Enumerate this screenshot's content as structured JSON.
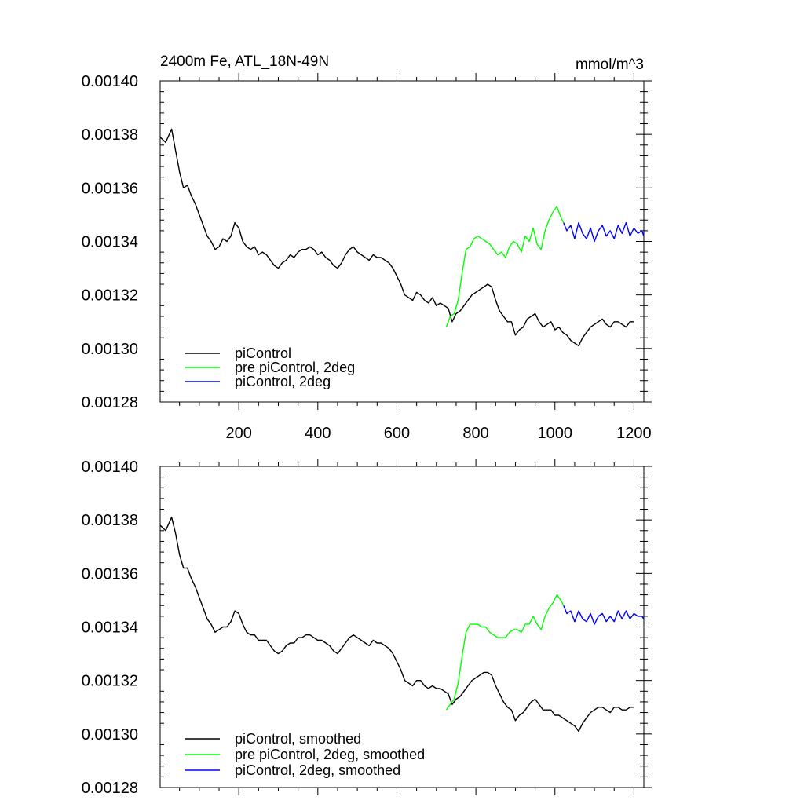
{
  "chart_data": [
    {
      "type": "line",
      "title": "2400m Fe, ATL_18N-49N",
      "units": "mmol/m^3",
      "xlim": [
        1,
        1225
      ],
      "ylim": [
        0.00128,
        0.0014
      ],
      "xticks": [
        200,
        400,
        600,
        800,
        1000,
        1200
      ],
      "xtick_labels": [
        "200",
        "400",
        "600",
        "800",
        "1000",
        "1200"
      ],
      "yticks": [
        0.00128,
        0.0013,
        0.00132,
        0.00134,
        0.00136,
        0.00138,
        0.0014
      ],
      "ytick_labels": [
        "0.00128",
        "0.00130",
        "0.00132",
        "0.00134",
        "0.00136",
        "0.00138",
        "0.00140"
      ],
      "legend_position": "bottom-left",
      "grid": false,
      "series": [
        {
          "name": "piControl",
          "color": "#000000",
          "x": [
            1,
            15,
            30,
            40,
            50,
            60,
            70,
            80,
            90,
            100,
            110,
            120,
            130,
            140,
            150,
            160,
            170,
            180,
            190,
            200,
            210,
            220,
            230,
            240,
            250,
            260,
            270,
            280,
            290,
            300,
            310,
            320,
            330,
            340,
            350,
            360,
            370,
            380,
            390,
            400,
            410,
            420,
            430,
            440,
            450,
            460,
            470,
            480,
            490,
            500,
            510,
            520,
            530,
            540,
            550,
            560,
            570,
            580,
            590,
            600,
            610,
            620,
            630,
            640,
            650,
            660,
            670,
            680,
            690,
            700,
            710,
            720,
            730,
            740,
            750,
            760,
            770,
            780,
            790,
            800,
            810,
            820,
            830,
            840,
            850,
            860,
            870,
            880,
            890,
            900,
            910,
            920,
            930,
            940,
            950,
            960,
            970,
            980,
            990,
            1000,
            1010,
            1020,
            1030,
            1040,
            1050,
            1060,
            1070,
            1080,
            1090,
            1100,
            1110,
            1120,
            1130,
            1140,
            1150,
            1160,
            1170,
            1180,
            1190,
            1200
          ],
          "y": [
            0.001379,
            0.001377,
            0.001382,
            0.001374,
            0.001366,
            0.00136,
            0.001361,
            0.001357,
            0.001354,
            0.00135,
            0.001346,
            0.001342,
            0.00134,
            0.001337,
            0.001338,
            0.001341,
            0.00134,
            0.001342,
            0.001347,
            0.001345,
            0.00134,
            0.001338,
            0.001337,
            0.001338,
            0.001335,
            0.001336,
            0.001335,
            0.001333,
            0.001331,
            0.00133,
            0.001332,
            0.001333,
            0.001335,
            0.001334,
            0.001336,
            0.001337,
            0.001337,
            0.001338,
            0.001337,
            0.001335,
            0.001336,
            0.001334,
            0.001333,
            0.001331,
            0.00133,
            0.001332,
            0.001335,
            0.001337,
            0.001338,
            0.001336,
            0.001335,
            0.001334,
            0.001333,
            0.001335,
            0.001334,
            0.001334,
            0.001333,
            0.001332,
            0.00133,
            0.001327,
            0.001324,
            0.00132,
            0.001319,
            0.001318,
            0.001321,
            0.00132,
            0.001318,
            0.001317,
            0.001319,
            0.001316,
            0.001317,
            0.001316,
            0.001315,
            0.00131,
            0.001313,
            0.001314,
            0.001316,
            0.001318,
            0.00132,
            0.001321,
            0.001322,
            0.001323,
            0.001324,
            0.001323,
            0.001318,
            0.001314,
            0.001312,
            0.00131,
            0.00131,
            0.001305,
            0.001307,
            0.001308,
            0.001311,
            0.001312,
            0.001313,
            0.00131,
            0.001308,
            0.001309,
            0.00131,
            0.001307,
            0.001308,
            0.001306,
            0.001305,
            0.001303,
            0.001302,
            0.001301,
            0.001304,
            0.001306,
            0.001308,
            0.001309,
            0.00131,
            0.001311,
            0.001309,
            0.001308,
            0.00131,
            0.00131,
            0.001309,
            0.001308,
            0.00131,
            0.00131
          ]
        },
        {
          "name": "pre piControl, 2deg",
          "color": "#00ff00",
          "x": [
            725,
            735,
            745,
            755,
            765,
            775,
            785,
            795,
            805,
            815,
            825,
            835,
            845,
            855,
            865,
            875,
            885,
            895,
            905,
            915,
            925,
            935,
            945,
            955,
            965,
            975,
            985,
            995,
            1005,
            1015,
            1022
          ],
          "y": [
            0.001308,
            0.001312,
            0.001313,
            0.001318,
            0.001328,
            0.001337,
            0.001338,
            0.001341,
            0.001342,
            0.001341,
            0.00134,
            0.001339,
            0.001337,
            0.001335,
            0.001336,
            0.001334,
            0.001338,
            0.00134,
            0.001339,
            0.001336,
            0.001342,
            0.00134,
            0.001345,
            0.001339,
            0.001337,
            0.001344,
            0.001348,
            0.001351,
            0.001353,
            0.001349,
            0.001347
          ]
        },
        {
          "name": "piControl, 2deg",
          "color": "#0000ff",
          "x": [
            1022,
            1030,
            1040,
            1050,
            1060,
            1070,
            1080,
            1090,
            1100,
            1110,
            1120,
            1130,
            1140,
            1150,
            1160,
            1170,
            1180,
            1190,
            1200,
            1210,
            1220,
            1225
          ],
          "y": [
            0.001347,
            0.001344,
            0.001346,
            0.001341,
            0.001347,
            0.001343,
            0.001341,
            0.001345,
            0.00134,
            0.001344,
            0.001346,
            0.001342,
            0.001344,
            0.001341,
            0.001346,
            0.001343,
            0.001347,
            0.001342,
            0.001345,
            0.001343,
            0.001344,
            0.001342
          ]
        }
      ]
    },
    {
      "type": "line",
      "xlim": [
        1,
        1225
      ],
      "ylim": [
        0.00128,
        0.0014
      ],
      "xticks": [
        200,
        400,
        600,
        800,
        1000,
        1200
      ],
      "yticks": [
        0.00128,
        0.0013,
        0.00132,
        0.00134,
        0.00136,
        0.00138,
        0.0014
      ],
      "ytick_labels": [
        "0.00128",
        "0.00130",
        "0.00132",
        "0.00134",
        "0.00136",
        "0.00138",
        "0.00140"
      ],
      "legend_position": "bottom-left",
      "grid": false,
      "series": [
        {
          "name": "piControl, smoothed",
          "color": "#000000",
          "x": [
            1,
            15,
            30,
            40,
            50,
            60,
            70,
            80,
            90,
            100,
            110,
            120,
            130,
            140,
            150,
            160,
            170,
            180,
            190,
            200,
            210,
            220,
            230,
            240,
            250,
            260,
            270,
            280,
            290,
            300,
            310,
            320,
            330,
            340,
            350,
            360,
            370,
            380,
            390,
            400,
            410,
            420,
            430,
            440,
            450,
            460,
            470,
            480,
            490,
            500,
            510,
            520,
            530,
            540,
            550,
            560,
            570,
            580,
            590,
            600,
            610,
            620,
            630,
            640,
            650,
            660,
            670,
            680,
            690,
            700,
            710,
            720,
            730,
            740,
            750,
            760,
            770,
            780,
            790,
            800,
            810,
            820,
            830,
            840,
            850,
            860,
            870,
            880,
            890,
            900,
            910,
            920,
            930,
            940,
            950,
            960,
            970,
            980,
            990,
            1000,
            1010,
            1020,
            1030,
            1040,
            1050,
            1060,
            1070,
            1080,
            1090,
            1100,
            1110,
            1120,
            1130,
            1140,
            1150,
            1160,
            1170,
            1180,
            1190,
            1200
          ],
          "y": [
            0.001378,
            0.001376,
            0.001381,
            0.001375,
            0.001367,
            0.001362,
            0.001362,
            0.001358,
            0.001355,
            0.001351,
            0.001347,
            0.001343,
            0.001341,
            0.001338,
            0.001339,
            0.00134,
            0.00134,
            0.001342,
            0.001346,
            0.001345,
            0.001341,
            0.001338,
            0.001337,
            0.001337,
            0.001335,
            0.001335,
            0.001335,
            0.001333,
            0.001331,
            0.00133,
            0.001331,
            0.001333,
            0.001334,
            0.001334,
            0.001336,
            0.001336,
            0.001337,
            0.001337,
            0.001336,
            0.001335,
            0.001335,
            0.001334,
            0.001333,
            0.001331,
            0.00133,
            0.001332,
            0.001334,
            0.001336,
            0.001337,
            0.001336,
            0.001335,
            0.001334,
            0.001333,
            0.001335,
            0.001334,
            0.001334,
            0.001333,
            0.001332,
            0.00133,
            0.001327,
            0.001324,
            0.00132,
            0.001319,
            0.001318,
            0.00132,
            0.00132,
            0.001318,
            0.001317,
            0.001318,
            0.001317,
            0.001317,
            0.001316,
            0.001315,
            0.001311,
            0.001313,
            0.001314,
            0.001316,
            0.001318,
            0.00132,
            0.001321,
            0.001322,
            0.001323,
            0.001323,
            0.001322,
            0.001318,
            0.001315,
            0.001312,
            0.00131,
            0.001309,
            0.001305,
            0.001307,
            0.001308,
            0.00131,
            0.001312,
            0.001313,
            0.001311,
            0.001309,
            0.001309,
            0.001309,
            0.001307,
            0.001307,
            0.001306,
            0.001305,
            0.001304,
            0.001303,
            0.001301,
            0.001304,
            0.001306,
            0.001308,
            0.001309,
            0.00131,
            0.00131,
            0.001309,
            0.001308,
            0.00131,
            0.00131,
            0.001309,
            0.001309,
            0.00131,
            0.00131
          ]
        },
        {
          "name": "pre piControl, 2deg, smoothed",
          "color": "#00ff00",
          "x": [
            725,
            735,
            745,
            755,
            765,
            775,
            785,
            795,
            805,
            815,
            825,
            835,
            845,
            855,
            865,
            875,
            885,
            895,
            905,
            915,
            925,
            935,
            945,
            955,
            965,
            975,
            985,
            995,
            1005,
            1015,
            1022
          ],
          "y": [
            0.001309,
            0.001311,
            0.001313,
            0.001319,
            0.001329,
            0.001338,
            0.001341,
            0.001341,
            0.001341,
            0.00134,
            0.00134,
            0.001338,
            0.001337,
            0.001336,
            0.001336,
            0.001336,
            0.001338,
            0.001339,
            0.001339,
            0.001338,
            0.001341,
            0.001341,
            0.001344,
            0.001341,
            0.001339,
            0.001344,
            0.001347,
            0.001349,
            0.001352,
            0.00135,
            0.001348
          ]
        },
        {
          "name": "piControl, 2deg, smoothed",
          "color": "#0000ff",
          "x": [
            1022,
            1030,
            1040,
            1050,
            1060,
            1070,
            1080,
            1090,
            1100,
            1110,
            1120,
            1130,
            1140,
            1150,
            1160,
            1170,
            1180,
            1190,
            1200,
            1210,
            1220,
            1225
          ],
          "y": [
            0.001348,
            0.001345,
            0.001346,
            0.001342,
            0.001346,
            0.001343,
            0.001342,
            0.001345,
            0.001341,
            0.001344,
            0.001345,
            0.001342,
            0.001344,
            0.001342,
            0.001346,
            0.001343,
            0.001346,
            0.001343,
            0.001345,
            0.001344,
            0.001344,
            0.001343
          ]
        }
      ]
    }
  ]
}
